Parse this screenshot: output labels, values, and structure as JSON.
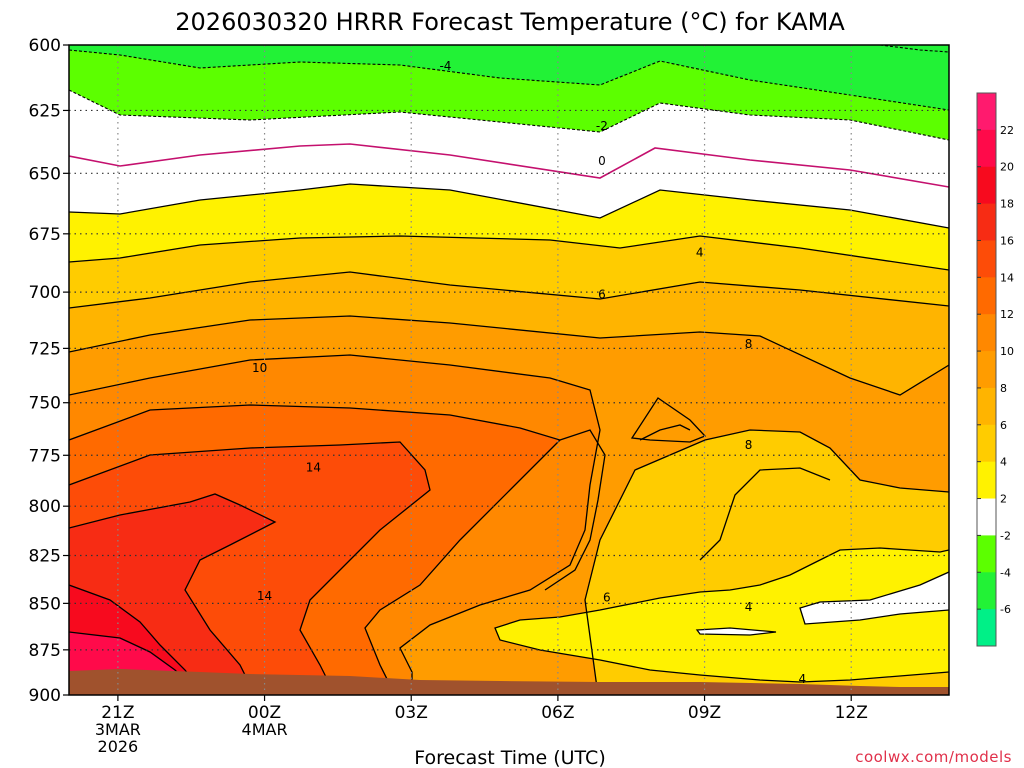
{
  "chart_data": {
    "type": "heatmap",
    "title": "2026030320 HRRR Forecast Temperature (°C) for KAMA",
    "xlabel": "Forecast Time (UTC)",
    "ylabel": "",
    "credit": "coolwx.com/models",
    "x_range_hours": [
      -1,
      17
    ],
    "x_ticks": [
      {
        "hour": 0,
        "lines": [
          "21Z",
          "3MAR",
          "2026"
        ]
      },
      {
        "hour": 3,
        "lines": [
          "00Z",
          "4MAR"
        ]
      },
      {
        "hour": 6,
        "lines": [
          "03Z"
        ]
      },
      {
        "hour": 9,
        "lines": [
          "06Z"
        ]
      },
      {
        "hour": 12,
        "lines": [
          "09Z"
        ]
      },
      {
        "hour": 15,
        "lines": [
          "12Z"
        ]
      }
    ],
    "y_axis": {
      "scale": "log-pressure",
      "range": [
        600,
        900
      ],
      "ticks": [
        600,
        625,
        650,
        675,
        700,
        725,
        750,
        775,
        800,
        825,
        850,
        875,
        900
      ]
    },
    "grid": true,
    "colorbar": {
      "placement": "right",
      "bands": [
        {
          "min": 22,
          "max": 24,
          "color": "#ff1a6e"
        },
        {
          "min": 20,
          "max": 22,
          "color": "#ff0a4a"
        },
        {
          "min": 18,
          "max": 20,
          "color": "#f70a1e"
        },
        {
          "min": 16,
          "max": 18,
          "color": "#f72c14"
        },
        {
          "min": 14,
          "max": 16,
          "color": "#fd4c08"
        },
        {
          "min": 12,
          "max": 14,
          "color": "#ff6a00"
        },
        {
          "min": 10,
          "max": 12,
          "color": "#ff8800"
        },
        {
          "min": 8,
          "max": 10,
          "color": "#ff9c00"
        },
        {
          "min": 6,
          "max": 8,
          "color": "#ffb400"
        },
        {
          "min": 4,
          "max": 6,
          "color": "#ffcc00"
        },
        {
          "min": 2,
          "max": 4,
          "color": "#fff200"
        },
        {
          "min": -2,
          "max": 2,
          "color": "#ffffff"
        },
        {
          "min": -4,
          "max": -2,
          "color": "#5cff00"
        },
        {
          "min": -6,
          "max": -4,
          "color": "#22f236"
        },
        {
          "min": -8,
          "max": -6,
          "color": "#00f087"
        }
      ],
      "tick_labels": [
        "22",
        "20",
        "18",
        "16",
        "14",
        "12",
        "10",
        "8",
        "6",
        "4",
        "2",
        "-2",
        "-4",
        "-6"
      ]
    },
    "terrain_color": "#a0522d",
    "contour_labels": [
      {
        "text": "-4",
        "hour": 6.7,
        "p": 608
      },
      {
        "text": "-2",
        "hour": 9.9,
        "p": 631
      },
      {
        "text": "0",
        "hour": 9.9,
        "p": 645
      },
      {
        "text": "4",
        "hour": 11.9,
        "p": 683
      },
      {
        "text": "6",
        "hour": 9.9,
        "p": 701
      },
      {
        "text": "8",
        "hour": 12.9,
        "p": 723
      },
      {
        "text": "10",
        "hour": 2.9,
        "p": 734
      },
      {
        "text": "14",
        "hour": 4.0,
        "p": 781
      },
      {
        "text": "8",
        "hour": 12.9,
        "p": 770
      },
      {
        "text": "14",
        "hour": 3.0,
        "p": 846
      },
      {
        "text": "6",
        "hour": 10.0,
        "p": 847
      },
      {
        "text": "4",
        "hour": 12.9,
        "p": 852
      },
      {
        "text": "4",
        "hour": 14.0,
        "p": 891
      }
    ]
  }
}
